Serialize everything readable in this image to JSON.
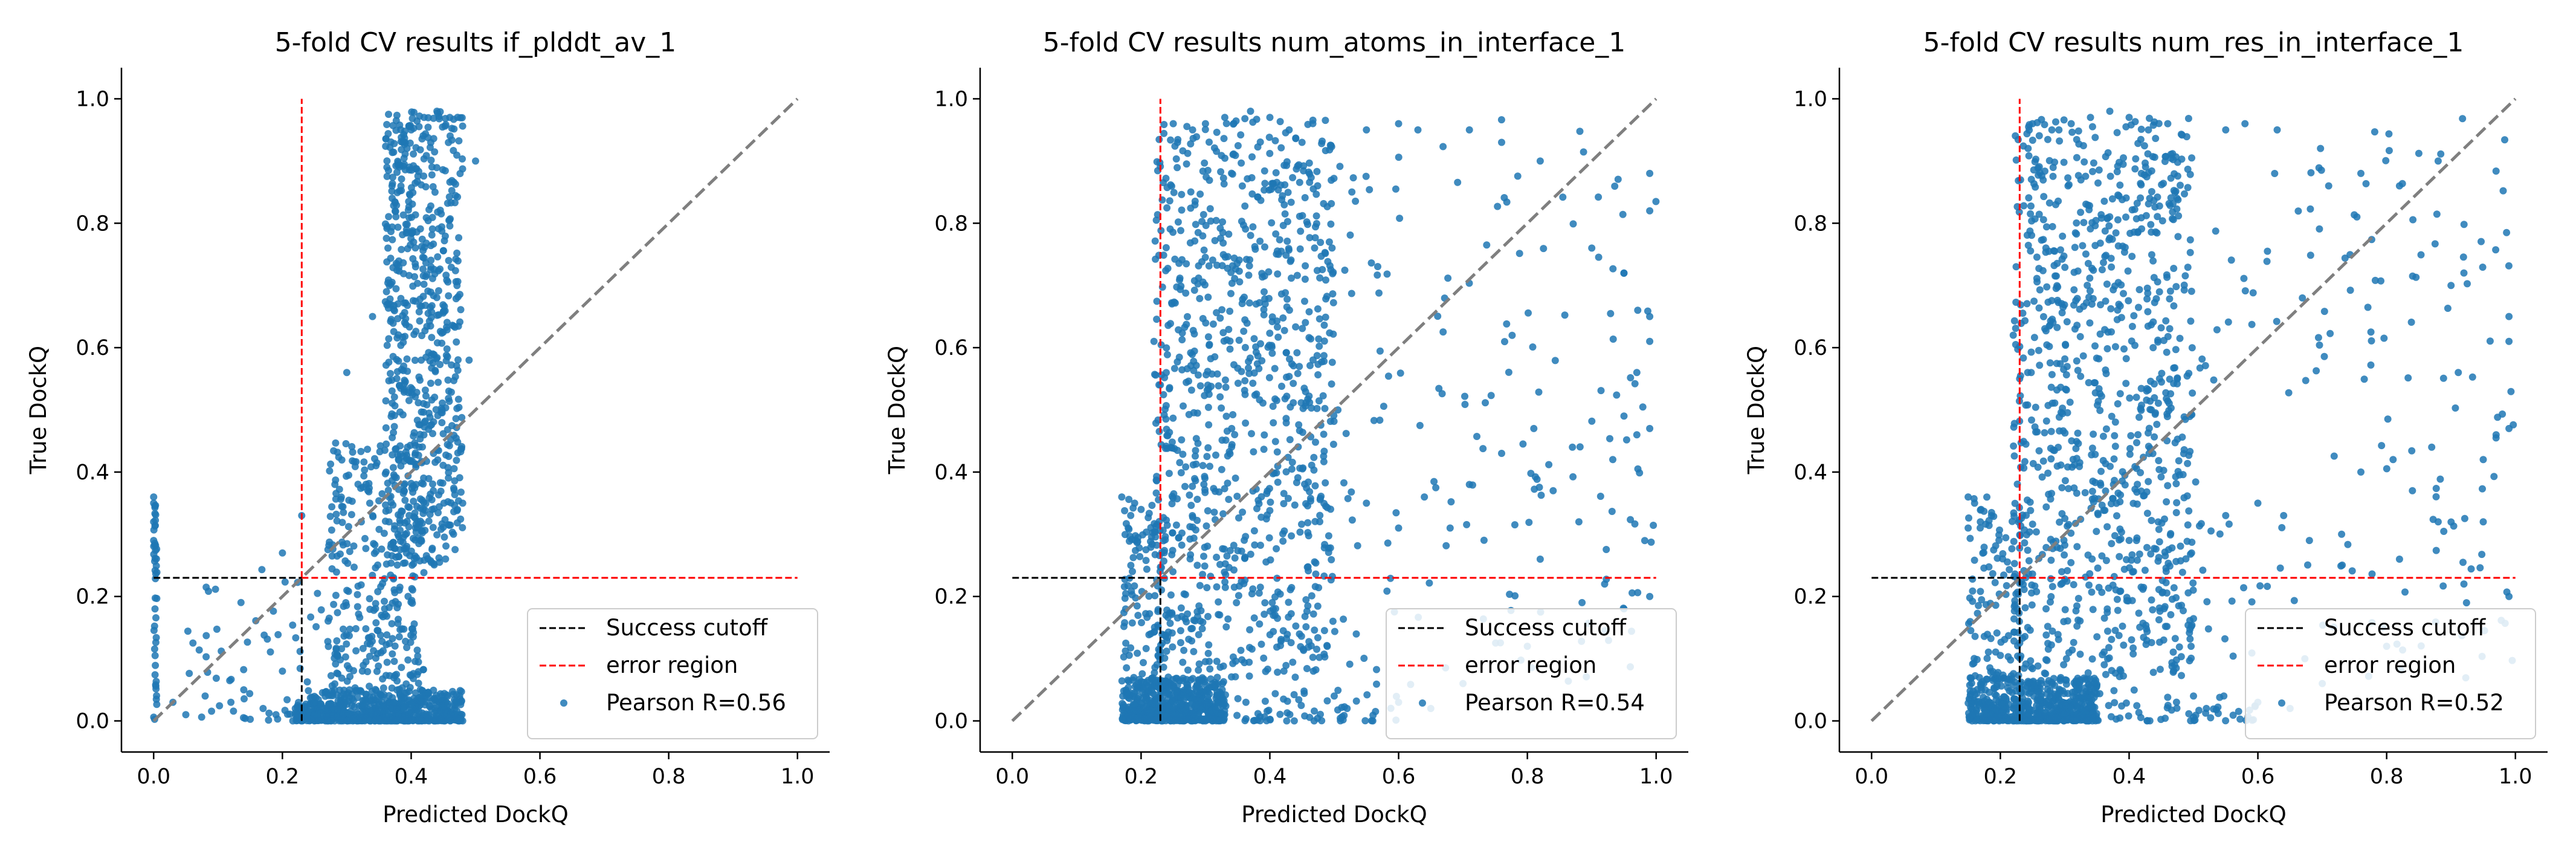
{
  "chart_data": [
    {
      "type": "scatter",
      "title": "5-fold CV results if_plddt_av_1",
      "xlabel": "Predicted DockQ",
      "ylabel": "True DockQ",
      "xlim": [
        -0.05,
        1.05
      ],
      "ylim": [
        -0.05,
        1.05
      ],
      "xticks": [
        "0.0",
        "0.2",
        "0.4",
        "0.6",
        "0.8",
        "1.0"
      ],
      "yticks": [
        "0.0",
        "0.2",
        "0.4",
        "0.6",
        "0.8",
        "1.0"
      ],
      "legend": {
        "placement": "lower-right",
        "entries": [
          "Success cutoff",
          "error region",
          "Pearson R=0.56"
        ]
      },
      "cutoff": 0.23,
      "pearson_r": 0.56,
      "point_color": "#1f77b4",
      "clusters": [
        {
          "x": [
            0.0,
            0.005
          ],
          "y": [
            0.0,
            0.36
          ],
          "n": 45
        },
        {
          "x": [
            0.22,
            0.48
          ],
          "y": [
            0.0,
            0.05
          ],
          "n": 650
        },
        {
          "x": [
            0.36,
            0.48
          ],
          "y": [
            0.25,
            0.98
          ],
          "n": 650
        },
        {
          "x": [
            0.27,
            0.42
          ],
          "y": [
            0.05,
            0.45
          ],
          "n": 320
        },
        {
          "x": [
            0.05,
            0.3
          ],
          "y": [
            0.0,
            0.25
          ],
          "n": 70
        }
      ],
      "points": [
        [
          0.0,
          0.36
        ],
        [
          0.0,
          0.35
        ],
        [
          0.0,
          0.32
        ],
        [
          0.0,
          0.29
        ],
        [
          0.03,
          0.03
        ],
        [
          0.05,
          0.01
        ],
        [
          0.08,
          0.04
        ],
        [
          0.12,
          0.03
        ],
        [
          0.14,
          0.05
        ],
        [
          0.17,
          0.02
        ],
        [
          0.2,
          0.08
        ],
        [
          0.2,
          0.27
        ],
        [
          0.23,
          0.33
        ],
        [
          0.3,
          0.56
        ],
        [
          0.34,
          0.65
        ],
        [
          0.4,
          0.95
        ],
        [
          0.42,
          0.97
        ],
        [
          0.44,
          0.98
        ],
        [
          0.46,
          0.97
        ],
        [
          0.5,
          0.9
        ],
        [
          0.49,
          0.58
        ],
        [
          0.48,
          0.35
        ],
        [
          0.45,
          0.02
        ],
        [
          0.47,
          0.03
        ],
        [
          0.22,
          0.02
        ],
        [
          0.25,
          0.01
        ],
        [
          0.19,
          0.01
        ]
      ]
    },
    {
      "type": "scatter",
      "title": "5-fold CV results num_atoms_in_interface_1",
      "xlabel": "Predicted DockQ",
      "ylabel": "True DockQ",
      "xlim": [
        -0.05,
        1.05
      ],
      "ylim": [
        -0.05,
        1.05
      ],
      "xticks": [
        "0.0",
        "0.2",
        "0.4",
        "0.6",
        "0.8",
        "1.0"
      ],
      "yticks": [
        "0.0",
        "0.2",
        "0.4",
        "0.6",
        "0.8",
        "1.0"
      ],
      "legend": {
        "placement": "lower-right",
        "entries": [
          "Success cutoff",
          "error region",
          "Pearson R=0.54"
        ]
      },
      "cutoff": 0.23,
      "pearson_r": 0.54,
      "point_color": "#1f77b4",
      "clusters": [
        {
          "x": [
            0.17,
            0.33
          ],
          "y": [
            0.0,
            0.07
          ],
          "n": 600
        },
        {
          "x": [
            0.17,
            0.25
          ],
          "y": [
            0.05,
            0.36
          ],
          "n": 120
        },
        {
          "x": [
            0.22,
            0.5
          ],
          "y": [
            0.07,
            0.97
          ],
          "n": 900
        },
        {
          "x": [
            0.45,
            1.0
          ],
          "y": [
            0.05,
            0.97
          ],
          "n": 170
        },
        {
          "x": [
            0.33,
            0.6
          ],
          "y": [
            0.0,
            0.05
          ],
          "n": 60
        }
      ],
      "points": [
        [
          0.17,
          0.36
        ],
        [
          0.19,
          0.35
        ],
        [
          0.2,
          0.34
        ],
        [
          0.18,
          0.31
        ],
        [
          0.22,
          0.61
        ],
        [
          0.23,
          0.54
        ],
        [
          0.25,
          0.96
        ],
        [
          0.28,
          0.95
        ],
        [
          0.3,
          0.96
        ],
        [
          0.33,
          0.97
        ],
        [
          0.37,
          0.98
        ],
        [
          0.4,
          0.97
        ],
        [
          0.43,
          0.95
        ],
        [
          0.45,
          0.93
        ],
        [
          0.55,
          0.95
        ],
        [
          0.6,
          0.96
        ],
        [
          0.63,
          0.95
        ],
        [
          0.71,
          0.95
        ],
        [
          0.76,
          0.93
        ],
        [
          0.82,
          0.9
        ],
        [
          0.9,
          0.76
        ],
        [
          0.95,
          0.72
        ],
        [
          0.99,
          0.88
        ],
        [
          0.99,
          0.82
        ],
        [
          0.99,
          0.65
        ],
        [
          0.99,
          0.61
        ],
        [
          0.97,
          0.56
        ],
        [
          0.99,
          0.47
        ],
        [
          0.97,
          0.46
        ],
        [
          0.95,
          0.49
        ],
        [
          0.87,
          0.44
        ],
        [
          0.84,
          0.37
        ],
        [
          0.81,
          0.47
        ],
        [
          0.76,
          0.43
        ],
        [
          0.71,
          0.38
        ],
        [
          0.68,
          0.31
        ],
        [
          0.64,
          0.36
        ],
        [
          0.6,
          0.31
        ],
        [
          0.55,
          0.35
        ],
        [
          0.88,
          0.32
        ],
        [
          0.92,
          0.22
        ],
        [
          0.95,
          0.18
        ],
        [
          0.99,
          0.2
        ],
        [
          0.82,
          0.26
        ],
        [
          0.8,
          0.12
        ],
        [
          0.7,
          0.06
        ],
        [
          0.65,
          0.02
        ],
        [
          0.6,
          0.03
        ],
        [
          0.52,
          0.02
        ],
        [
          0.5,
          0.04
        ]
      ]
    },
    {
      "type": "scatter",
      "title": "5-fold CV results num_res_in_interface_1",
      "xlabel": "Predicted DockQ",
      "ylabel": "True DockQ",
      "xlim": [
        -0.05,
        1.05
      ],
      "ylim": [
        -0.05,
        1.05
      ],
      "xticks": [
        "0.0",
        "0.2",
        "0.4",
        "0.6",
        "0.8",
        "1.0"
      ],
      "yticks": [
        "0.0",
        "0.2",
        "0.4",
        "0.6",
        "0.8",
        "1.0"
      ],
      "legend": {
        "placement": "lower-right",
        "entries": [
          "Success cutoff",
          "error region",
          "Pearson R=0.52"
        ]
      },
      "cutoff": 0.23,
      "pearson_r": 0.52,
      "point_color": "#1f77b4",
      "clusters": [
        {
          "x": [
            0.15,
            0.35
          ],
          "y": [
            0.0,
            0.07
          ],
          "n": 600
        },
        {
          "x": [
            0.15,
            0.25
          ],
          "y": [
            0.05,
            0.36
          ],
          "n": 120
        },
        {
          "x": [
            0.22,
            0.5
          ],
          "y": [
            0.07,
            0.97
          ],
          "n": 900
        },
        {
          "x": [
            0.45,
            1.0
          ],
          "y": [
            0.05,
            0.97
          ],
          "n": 170
        },
        {
          "x": [
            0.33,
            0.6
          ],
          "y": [
            0.0,
            0.05
          ],
          "n": 60
        }
      ],
      "points": [
        [
          0.15,
          0.36
        ],
        [
          0.16,
          0.35
        ],
        [
          0.17,
          0.34
        ],
        [
          0.15,
          0.31
        ],
        [
          0.22,
          0.62
        ],
        [
          0.23,
          0.55
        ],
        [
          0.25,
          0.96
        ],
        [
          0.28,
          0.95
        ],
        [
          0.31,
          0.96
        ],
        [
          0.34,
          0.97
        ],
        [
          0.37,
          0.98
        ],
        [
          0.4,
          0.97
        ],
        [
          0.43,
          0.95
        ],
        [
          0.46,
          0.96
        ],
        [
          0.55,
          0.95
        ],
        [
          0.58,
          0.96
        ],
        [
          0.63,
          0.95
        ],
        [
          0.71,
          0.86
        ],
        [
          0.76,
          0.88
        ],
        [
          0.82,
          0.86
        ],
        [
          0.88,
          0.9
        ],
        [
          0.92,
          0.72
        ],
        [
          0.99,
          0.65
        ],
        [
          0.99,
          0.61
        ],
        [
          0.97,
          0.46
        ],
        [
          0.99,
          0.47
        ],
        [
          0.9,
          0.7
        ],
        [
          0.95,
          0.42
        ],
        [
          0.87,
          0.44
        ],
        [
          0.84,
          0.37
        ],
        [
          0.81,
          0.42
        ],
        [
          0.76,
          0.4
        ],
        [
          0.73,
          0.3
        ],
        [
          0.68,
          0.29
        ],
        [
          0.64,
          0.33
        ],
        [
          0.6,
          0.35
        ],
        [
          0.55,
          0.33
        ],
        [
          0.88,
          0.32
        ],
        [
          0.92,
          0.22
        ],
        [
          0.95,
          0.32
        ],
        [
          0.99,
          0.2
        ],
        [
          0.82,
          0.26
        ],
        [
          0.8,
          0.12
        ],
        [
          0.7,
          0.06
        ],
        [
          0.65,
          0.02
        ],
        [
          0.6,
          0.03
        ],
        [
          0.52,
          0.02
        ],
        [
          0.5,
          0.04
        ]
      ]
    }
  ]
}
